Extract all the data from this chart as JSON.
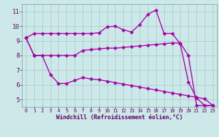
{
  "line1_x": [
    0,
    1,
    2,
    3,
    4,
    5,
    6,
    7,
    8,
    9,
    10,
    11,
    12,
    13,
    14,
    15,
    16,
    17,
    18,
    19,
    20,
    21,
    22,
    23
  ],
  "line1_y": [
    9.2,
    9.5,
    9.5,
    9.5,
    9.5,
    9.5,
    9.5,
    9.5,
    9.5,
    9.55,
    9.95,
    10.0,
    9.75,
    9.6,
    10.1,
    10.8,
    11.1,
    9.5,
    9.5,
    8.8,
    6.2,
    5.1,
    4.6,
    4.6
  ],
  "line2_x": [
    0,
    1,
    2,
    3,
    4,
    5,
    6,
    7,
    8,
    9,
    10,
    11,
    12,
    13,
    14,
    15,
    16,
    17,
    18,
    19,
    20,
    21,
    22,
    23
  ],
  "line2_y": [
    9.2,
    8.0,
    8.0,
    8.0,
    8.0,
    8.0,
    8.0,
    8.35,
    8.4,
    8.45,
    8.5,
    8.5,
    8.55,
    8.6,
    8.65,
    8.7,
    8.75,
    8.8,
    8.85,
    8.85,
    8.0,
    4.6,
    4.6,
    4.6
  ],
  "line3_x": [
    0,
    1,
    2,
    3,
    4,
    5,
    6,
    7,
    8,
    9,
    10,
    11,
    12,
    13,
    14,
    15,
    16,
    17,
    18,
    19,
    20,
    21,
    22,
    23
  ],
  "line3_y": [
    9.2,
    8.0,
    8.0,
    6.7,
    6.1,
    6.1,
    6.3,
    6.5,
    6.4,
    6.35,
    6.25,
    6.15,
    6.05,
    5.95,
    5.85,
    5.75,
    5.65,
    5.55,
    5.45,
    5.35,
    5.25,
    5.15,
    5.05,
    4.6
  ],
  "color": "#aa00aa",
  "bg_color": "#cce8e8",
  "grid_color": "#aacccc",
  "xlabel": "Windchill (Refroidissement éolien,°C)",
  "xlim": [
    -0.5,
    23.5
  ],
  "ylim": [
    4.5,
    11.5
  ],
  "yticks": [
    5,
    6,
    7,
    8,
    9,
    10,
    11
  ],
  "xticks": [
    0,
    1,
    2,
    3,
    4,
    5,
    6,
    7,
    8,
    9,
    10,
    11,
    12,
    13,
    14,
    15,
    16,
    17,
    18,
    19,
    20,
    21,
    22,
    23
  ],
  "marker": "D",
  "markersize": 2.5,
  "linewidth": 1.0,
  "tick_color": "#660066",
  "xlabel_fontsize": 6.0,
  "ytick_fontsize": 6.5,
  "xtick_fontsize": 5.0
}
